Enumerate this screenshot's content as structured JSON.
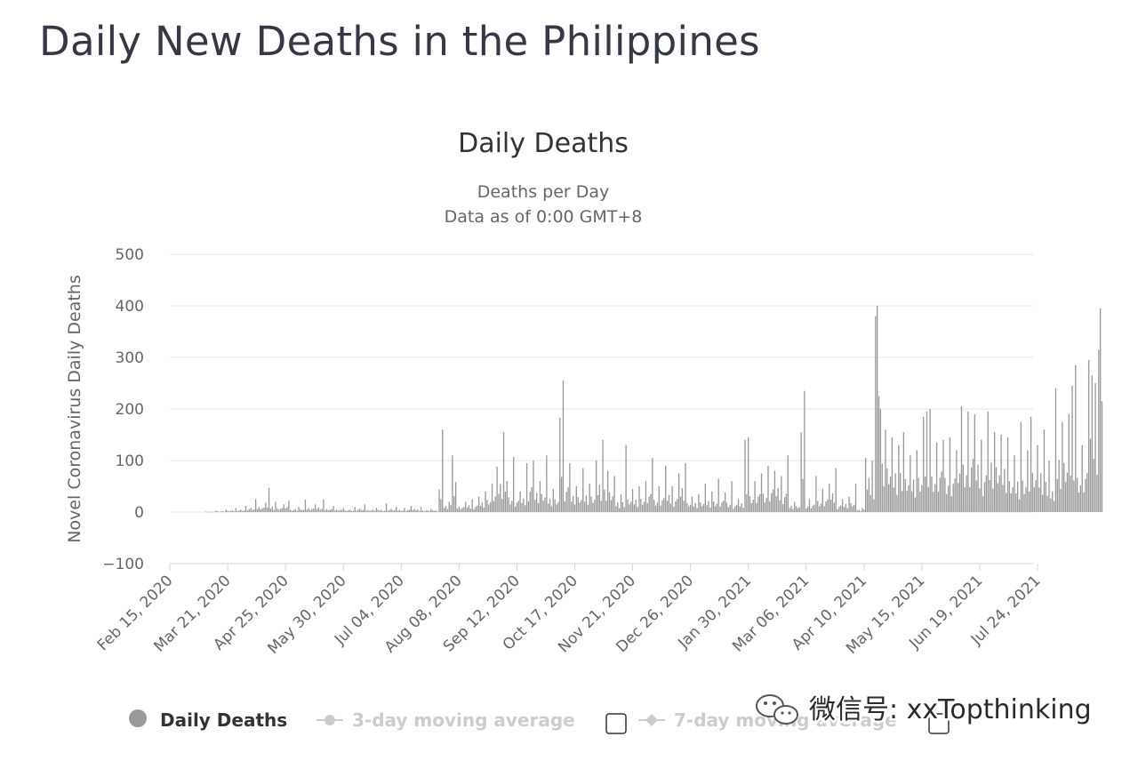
{
  "page": {
    "title": "Daily New Deaths in the Philippines"
  },
  "chart_data": {
    "type": "bar",
    "title": "Daily Deaths",
    "subtitle_lines": [
      "Deaths per Day",
      "Data as of 0:00 GMT+8"
    ],
    "ylabel": "Novel Coronavirus Daily Deaths",
    "ylim": [
      -100,
      500
    ],
    "yticks": [
      500,
      400,
      300,
      200,
      100,
      0,
      -100
    ],
    "ytick_labels": [
      "500",
      "400",
      "300",
      "200",
      "100",
      "0",
      "−100"
    ],
    "x_start": "2020-02-15",
    "x_end": "2021-08-20",
    "xtick_labels": [
      "Feb 15, 2020",
      "Mar 21, 2020",
      "Apr 25, 2020",
      "May 30, 2020",
      "Jul 04, 2020",
      "Aug 08, 2020",
      "Sep 12, 2020",
      "Oct 17, 2020",
      "Nov 21, 2020",
      "Dec 26, 2020",
      "Jan 30, 2021",
      "Mar 06, 2021",
      "Apr 10, 2021",
      "May 15, 2021",
      "Jun 19, 2021",
      "Jul 24, 2021"
    ],
    "grid": true,
    "bar_color": "#999999",
    "series": [
      {
        "name": "Daily Deaths",
        "points": [
          [
            "2020-03-08",
            1
          ],
          [
            "2020-03-14",
            3
          ],
          [
            "2020-03-20",
            5
          ],
          [
            "2020-03-26",
            8
          ],
          [
            "2020-04-01",
            12
          ],
          [
            "2020-04-07",
            25
          ],
          [
            "2020-04-13",
            18
          ],
          [
            "2020-04-15",
            47
          ],
          [
            "2020-04-19",
            20
          ],
          [
            "2020-04-24",
            15
          ],
          [
            "2020-04-27",
            22
          ],
          [
            "2020-05-03",
            10
          ],
          [
            "2020-05-07",
            24
          ],
          [
            "2020-05-13",
            15
          ],
          [
            "2020-05-18",
            25
          ],
          [
            "2020-05-24",
            12
          ],
          [
            "2020-05-30",
            8
          ],
          [
            "2020-06-06",
            10
          ],
          [
            "2020-06-12",
            15
          ],
          [
            "2020-06-19",
            8
          ],
          [
            "2020-06-25",
            17
          ],
          [
            "2020-07-01",
            10
          ],
          [
            "2020-07-06",
            8
          ],
          [
            "2020-07-10",
            12
          ],
          [
            "2020-07-16",
            10
          ],
          [
            "2020-07-22",
            6
          ],
          [
            "2020-07-27",
            44
          ],
          [
            "2020-07-29",
            160
          ],
          [
            "2020-08-02",
            20
          ],
          [
            "2020-08-04",
            110
          ],
          [
            "2020-08-06",
            58
          ],
          [
            "2020-08-12",
            20
          ],
          [
            "2020-08-16",
            25
          ],
          [
            "2020-08-20",
            30
          ],
          [
            "2020-08-24",
            40
          ],
          [
            "2020-08-28",
            55
          ],
          [
            "2020-08-31",
            88
          ],
          [
            "2020-09-04",
            155
          ],
          [
            "2020-09-06",
            60
          ],
          [
            "2020-09-10",
            107
          ],
          [
            "2020-09-14",
            40
          ],
          [
            "2020-09-18",
            95
          ],
          [
            "2020-09-22",
            100
          ],
          [
            "2020-09-26",
            60
          ],
          [
            "2020-09-30",
            110
          ],
          [
            "2020-10-04",
            45
          ],
          [
            "2020-10-08",
            183
          ],
          [
            "2020-10-10",
            255
          ],
          [
            "2020-10-14",
            95
          ],
          [
            "2020-10-18",
            50
          ],
          [
            "2020-10-22",
            85
          ],
          [
            "2020-10-26",
            55
          ],
          [
            "2020-10-30",
            100
          ],
          [
            "2020-11-03",
            140
          ],
          [
            "2020-11-06",
            80
          ],
          [
            "2020-11-10",
            70
          ],
          [
            "2020-11-14",
            35
          ],
          [
            "2020-11-17",
            130
          ],
          [
            "2020-11-21",
            45
          ],
          [
            "2020-11-25",
            50
          ],
          [
            "2020-11-29",
            60
          ],
          [
            "2020-12-03",
            105
          ],
          [
            "2020-12-07",
            50
          ],
          [
            "2020-12-11",
            90
          ],
          [
            "2020-12-15",
            50
          ],
          [
            "2020-12-19",
            75
          ],
          [
            "2020-12-23",
            95
          ],
          [
            "2020-12-27",
            30
          ],
          [
            "2020-12-31",
            35
          ],
          [
            "2021-01-04",
            55
          ],
          [
            "2021-01-08",
            40
          ],
          [
            "2021-01-12",
            65
          ],
          [
            "2021-01-16",
            38
          ],
          [
            "2021-01-20",
            60
          ],
          [
            "2021-01-24",
            25
          ],
          [
            "2021-01-28",
            140
          ],
          [
            "2021-01-30",
            145
          ],
          [
            "2021-02-03",
            60
          ],
          [
            "2021-02-07",
            75
          ],
          [
            "2021-02-11",
            90
          ],
          [
            "2021-02-15",
            80
          ],
          [
            "2021-02-19",
            70
          ],
          [
            "2021-02-23",
            110
          ],
          [
            "2021-02-27",
            20
          ],
          [
            "2021-03-03",
            155
          ],
          [
            "2021-03-05",
            235
          ],
          [
            "2021-03-08",
            25
          ],
          [
            "2021-03-12",
            70
          ],
          [
            "2021-03-16",
            45
          ],
          [
            "2021-03-20",
            55
          ],
          [
            "2021-03-24",
            85
          ],
          [
            "2021-03-28",
            25
          ],
          [
            "2021-04-01",
            30
          ],
          [
            "2021-04-05",
            55
          ],
          [
            "2021-04-09",
            8
          ],
          [
            "2021-04-11",
            105
          ],
          [
            "2021-04-15",
            100
          ],
          [
            "2021-04-17",
            380
          ],
          [
            "2021-04-18",
            400
          ],
          [
            "2021-04-19",
            225
          ],
          [
            "2021-04-20",
            200
          ],
          [
            "2021-04-23",
            160
          ],
          [
            "2021-04-27",
            145
          ],
          [
            "2021-05-01",
            130
          ],
          [
            "2021-05-04",
            155
          ],
          [
            "2021-05-08",
            110
          ],
          [
            "2021-05-12",
            120
          ],
          [
            "2021-05-16",
            185
          ],
          [
            "2021-05-18",
            195
          ],
          [
            "2021-05-20",
            200
          ],
          [
            "2021-05-24",
            135
          ],
          [
            "2021-05-28",
            140
          ],
          [
            "2021-06-01",
            145
          ],
          [
            "2021-06-05",
            120
          ],
          [
            "2021-06-08",
            205
          ],
          [
            "2021-06-12",
            195
          ],
          [
            "2021-06-16",
            190
          ],
          [
            "2021-06-20",
            140
          ],
          [
            "2021-06-24",
            195
          ],
          [
            "2021-06-28",
            155
          ],
          [
            "2021-07-02",
            150
          ],
          [
            "2021-07-06",
            145
          ],
          [
            "2021-07-10",
            110
          ],
          [
            "2021-07-14",
            175
          ],
          [
            "2021-07-18",
            120
          ],
          [
            "2021-07-20",
            185
          ],
          [
            "2021-07-24",
            130
          ],
          [
            "2021-07-28",
            160
          ],
          [
            "2021-07-31",
            100
          ],
          [
            "2021-08-02",
            40
          ],
          [
            "2021-08-04",
            240
          ],
          [
            "2021-08-08",
            175
          ],
          [
            "2021-08-12",
            190
          ],
          [
            "2021-08-14",
            245
          ],
          [
            "2021-08-16",
            285
          ],
          [
            "2021-08-20",
            130
          ],
          [
            "2021-08-24",
            295
          ],
          [
            "2021-08-26",
            265
          ],
          [
            "2021-08-28",
            250
          ],
          [
            "2021-08-30",
            315
          ],
          [
            "2021-08-31",
            395
          ],
          [
            "2021-09-01",
            215
          ]
        ]
      }
    ],
    "legend": {
      "position": "bottom-left",
      "items": [
        {
          "label": "Daily Deaths",
          "color": "#333333",
          "active": true
        },
        {
          "label": "3-day moving average",
          "color": "#cccccc",
          "active": false
        },
        {
          "label": "7-day moving average",
          "color": "#cccccc",
          "active": false
        }
      ]
    }
  },
  "watermark": {
    "text": "微信号: xxTopthinking"
  }
}
